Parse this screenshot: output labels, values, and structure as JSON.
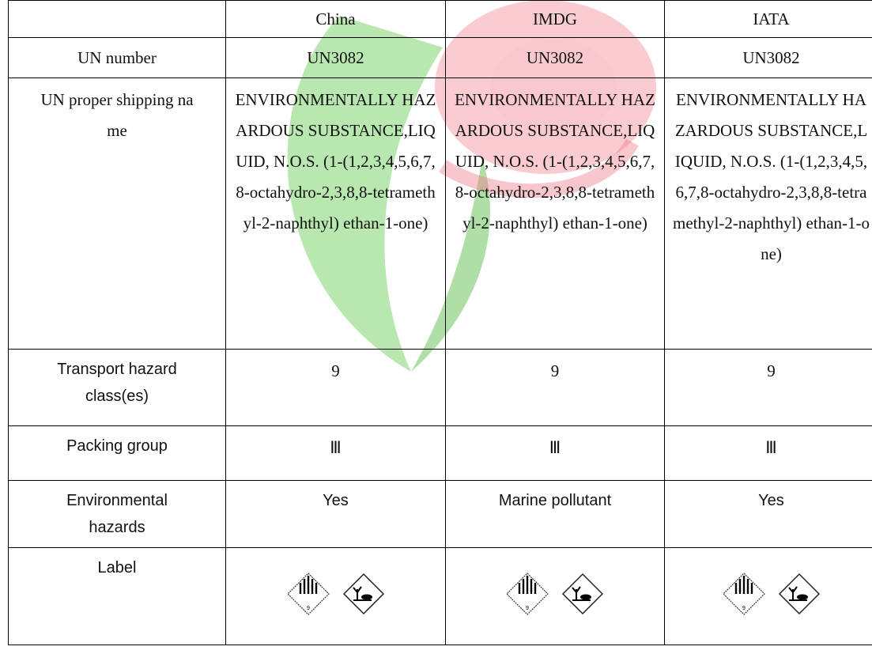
{
  "table": {
    "columns": [
      "China",
      "IMDG",
      "IATA"
    ],
    "rows": [
      {
        "label": "UN number",
        "values": [
          "UN3082",
          "UN3082",
          "UN3082"
        ]
      },
      {
        "label": "UN proper shipping name",
        "values": [
          "ENVIRONMENTALLY HAZARDOUS SUBSTANCE,LIQUID, N.O.S. (1-(1,2,3,4,5,6,7,8-octahydro-2,3,8,8-tetramethyl-2-naphthyl) ethan-1-one)",
          "ENVIRONMENTALLY HAZARDOUS SUBSTANCE,LIQUID, N.O.S. (1-(1,2,3,4,5,6,7,8-octahydro-2,3,8,8-tetramethyl-2-naphthyl) ethan-1-one)",
          "ENVIRONMENTALLY HAZARDOUS SUBSTANCE,LIQUID, N.O.S. (1-(1,2,3,4,5,6,7,8-octahydro-2,3,8,8-tetramethyl-2-naphthyl) ethan-1-one)"
        ]
      },
      {
        "label": "Transport hazard class(es)",
        "values": [
          "9",
          "9",
          "9"
        ]
      },
      {
        "label": "Packing group",
        "values": [
          "Ⅲ",
          "Ⅲ",
          "Ⅲ"
        ]
      },
      {
        "label": "Environmental hazards",
        "values": [
          "Yes",
          "Marine pollutant",
          "Yes"
        ]
      },
      {
        "label": "Label"
      }
    ]
  }
}
